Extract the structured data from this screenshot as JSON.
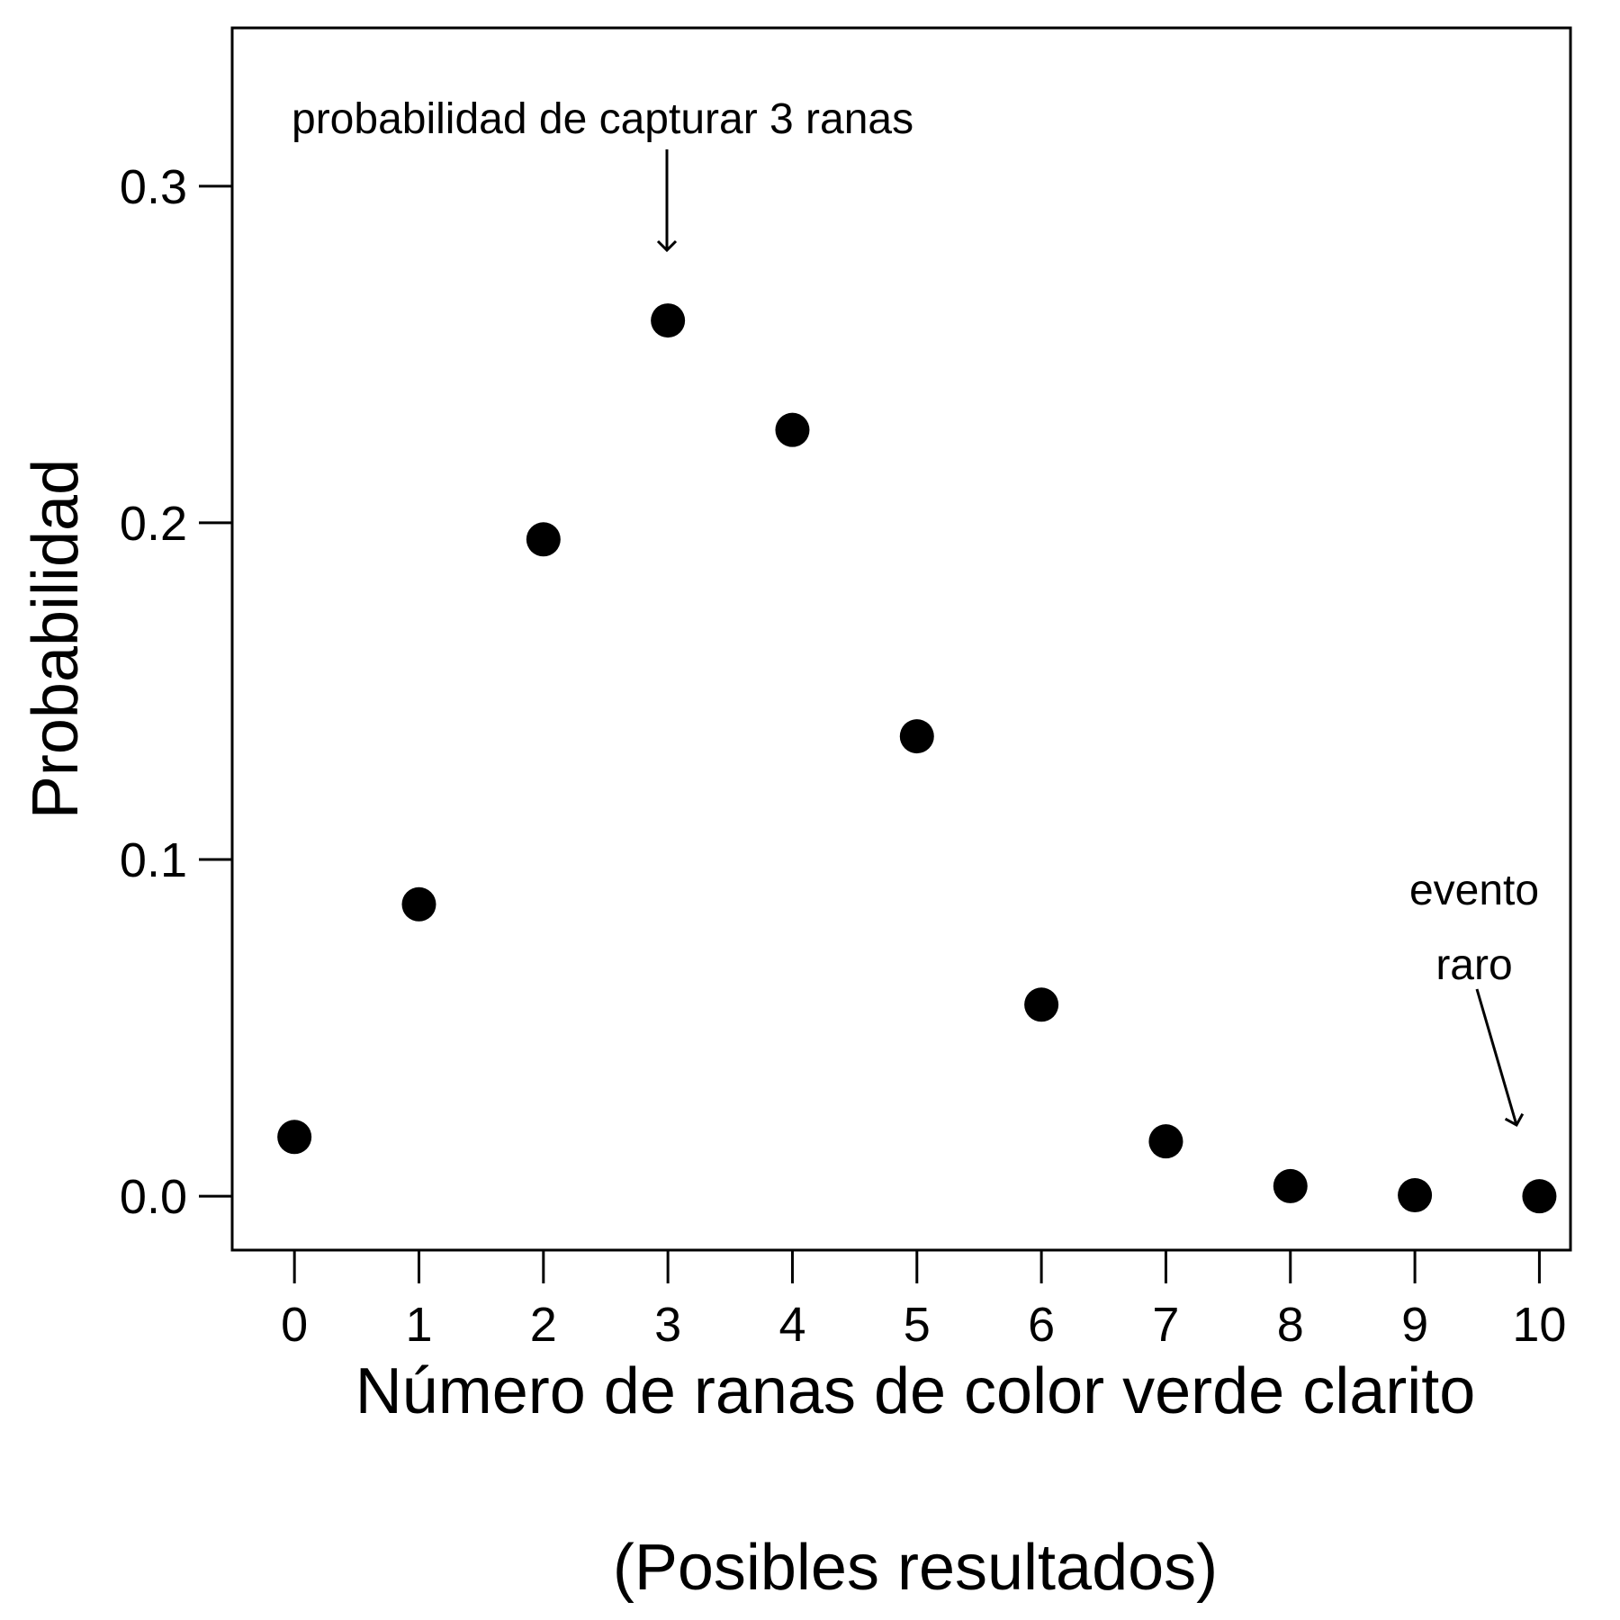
{
  "chart_data": {
    "type": "scatter",
    "title": "",
    "xlabel": "Número de ranas de color verde clarito",
    "xlabel_line2": "(Posibles resultados)",
    "ylabel": "Probabilidad",
    "x": [
      0,
      1,
      2,
      3,
      4,
      5,
      6,
      7,
      8,
      9,
      10
    ],
    "y": [
      0.0176,
      0.0867,
      0.1951,
      0.2601,
      0.2276,
      0.1366,
      0.0569,
      0.0163,
      0.003,
      0.0003,
      0.0
    ],
    "xticks": [
      "0",
      "1",
      "2",
      "3",
      "4",
      "5",
      "6",
      "7",
      "8",
      "9",
      "10"
    ],
    "yticks": [
      0.0,
      0.1,
      0.2,
      0.3
    ],
    "yticks_labels": [
      "0.0",
      "0.1",
      "0.2",
      "0.3"
    ],
    "xlim": [
      -0.5,
      10.25
    ],
    "ylim": [
      -0.016,
      0.347
    ],
    "grid": false,
    "legend": "none",
    "point_color": "#000000",
    "annotations": [
      {
        "text": "probabilidad de capturar 3 ranas",
        "target_x": 3
      },
      {
        "text_lines": [
          "evento",
          "raro"
        ],
        "target_x": 10
      }
    ]
  }
}
